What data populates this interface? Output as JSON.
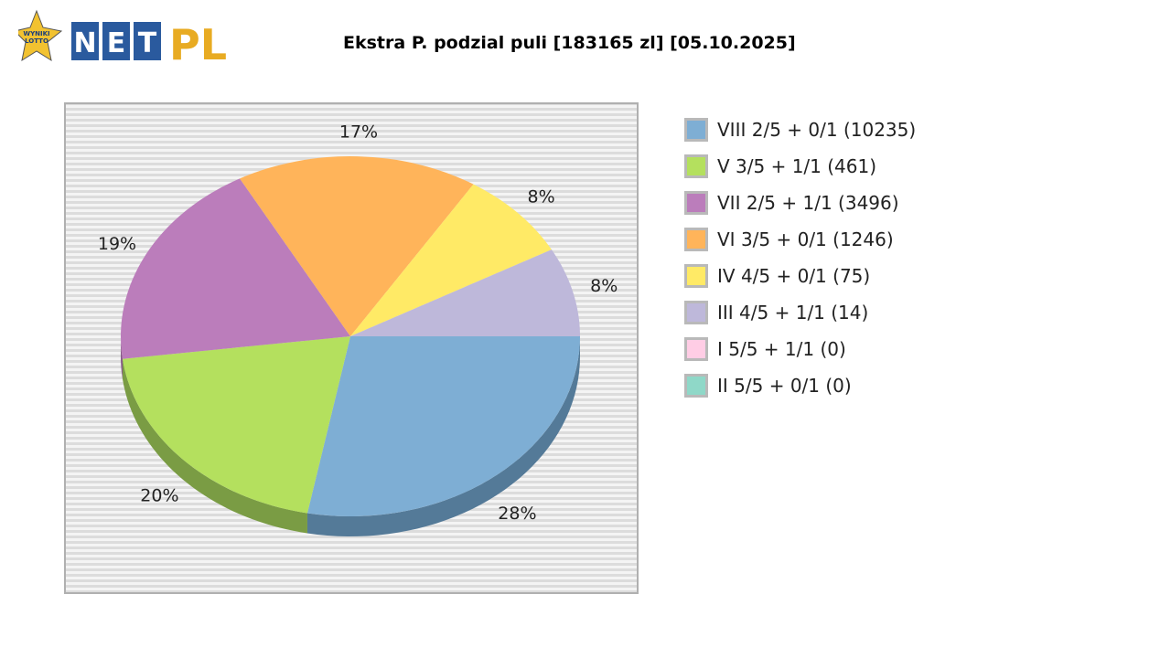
{
  "logo": {
    "badge_text": [
      "WYNIKI",
      "LOTTO"
    ],
    "net_letters": [
      "N",
      "E",
      "T"
    ],
    "pl_text": "PL",
    "colors": {
      "star": "#f2c230",
      "net_box": "#2a5a9e",
      "pl": "#e8ab22"
    }
  },
  "title": "Ekstra P. podzial puli [183165 zl] [05.10.2025]",
  "chart_data": {
    "type": "pie",
    "title": "Ekstra P. podzial puli [183165 zl] [05.10.2025]",
    "slices": [
      {
        "label": "VIII 2/5 + 0/1 (10235)",
        "percent_label": "28%",
        "value": 28,
        "color": "#7eaed4",
        "shade": "#547a98"
      },
      {
        "label": "V 3/5 + 1/1 (461)",
        "percent_label": "20%",
        "value": 20,
        "color": "#b4e05e",
        "shade": "#7a9c44"
      },
      {
        "label": "VII 2/5 + 1/1 (3496)",
        "percent_label": "19%",
        "value": 19,
        "color": "#bb7dbb",
        "shade": "#865a86"
      },
      {
        "label": "VI 3/5 + 0/1 (1246)",
        "percent_label": "17%",
        "value": 17,
        "color": "#ffb45a",
        "shade": "#b58040"
      },
      {
        "label": "IV 4/5 + 0/1 (75)",
        "percent_label": "8%",
        "value": 8,
        "color": "#ffea66",
        "shade": "#b5a648"
      },
      {
        "label": "III 4/5 + 1/1 (14)",
        "percent_label": "8%",
        "value": 8,
        "color": "#beb8da",
        "shade": "#86829b"
      },
      {
        "label": "I 5/5 + 1/1 (0)",
        "percent_label": "",
        "value": 0,
        "color": "#ffcde5",
        "shade": "#b591a2"
      },
      {
        "label": "II 5/5 + 0/1 (0)",
        "percent_label": "",
        "value": 0,
        "color": "#8fd8c8",
        "shade": "#65998d"
      }
    ],
    "legend_position": "right",
    "background": "striped"
  }
}
